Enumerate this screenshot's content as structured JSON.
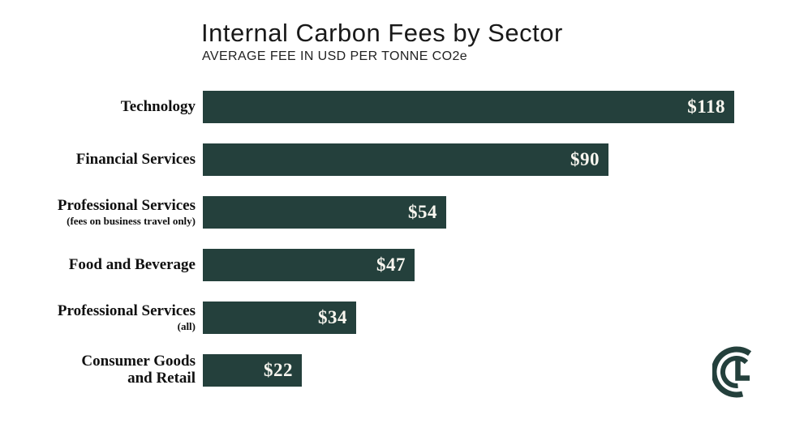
{
  "header": {
    "title": "Internal Carbon Fees by Sector",
    "subtitle": "AVERAGE FEE IN USD PER TONNE CO2e"
  },
  "chart_data": {
    "type": "bar",
    "orientation": "horizontal",
    "title": "Internal Carbon Fees by Sector",
    "subtitle": "AVERAGE FEE IN USD PER TONNE CO2e",
    "xlabel": "",
    "ylabel": "",
    "unit": "USD per tonne CO2e",
    "xlim": [
      0,
      118
    ],
    "grid": false,
    "legend": false,
    "bar_color": "#24403c",
    "value_text_color": "#f8f6ef",
    "categories": [
      "Technology",
      "Financial Services",
      "Professional Services (fees on business travel only)",
      "Food and Beverage",
      "Professional Services (all)",
      "Consumer Goods and Retail"
    ],
    "values": [
      118,
      90,
      54,
      47,
      34,
      22
    ],
    "rows": [
      {
        "label_lines": [
          "Technology"
        ],
        "note": "",
        "value": 118,
        "value_label": "$118"
      },
      {
        "label_lines": [
          "Financial Services"
        ],
        "note": "",
        "value": 90,
        "value_label": "$90"
      },
      {
        "label_lines": [
          "Professional Services"
        ],
        "note": "(fees on business travel only)",
        "value": 54,
        "value_label": "$54"
      },
      {
        "label_lines": [
          "Food and Beverage"
        ],
        "note": "",
        "value": 47,
        "value_label": "$47"
      },
      {
        "label_lines": [
          "Professional Services"
        ],
        "note": "(all)",
        "value": 34,
        "value_label": "$34"
      },
      {
        "label_lines": [
          "Consumer Goods",
          "and Retail"
        ],
        "note": "",
        "value": 22,
        "value_label": "$22"
      }
    ]
  },
  "logo": {
    "name": "CL monogram",
    "color": "#24403c"
  }
}
